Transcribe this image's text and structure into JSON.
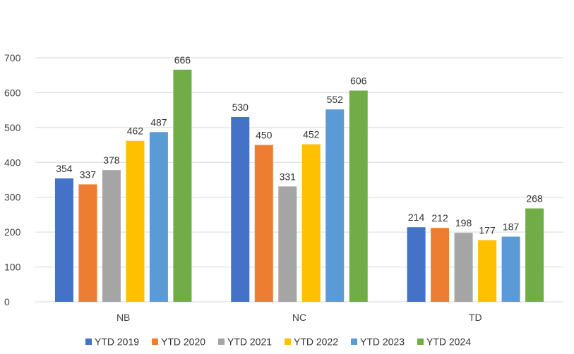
{
  "chart_data": {
    "type": "bar",
    "title": "",
    "xlabel": "",
    "ylabel": "",
    "categories": [
      "NB",
      "NC",
      "TD"
    ],
    "ylim": [
      0,
      700
    ],
    "yticks": [
      0,
      100,
      200,
      300,
      400,
      500,
      600,
      700
    ],
    "grid": true,
    "legend_position": "bottom",
    "series": [
      {
        "name": "YTD 2019",
        "color": "#4472C4",
        "values": [
          354,
          530,
          214
        ]
      },
      {
        "name": "YTD 2020",
        "color": "#ED7D31",
        "values": [
          337,
          450,
          212
        ]
      },
      {
        "name": "YTD 2021",
        "color": "#A5A5A5",
        "values": [
          378,
          331,
          198
        ]
      },
      {
        "name": "YTD 2022",
        "color": "#FFC000",
        "values": [
          462,
          452,
          177
        ]
      },
      {
        "name": "YTD 2023",
        "color": "#5B9BD5",
        "values": [
          487,
          552,
          187
        ]
      },
      {
        "name": "YTD 2024",
        "color": "#70AD47",
        "values": [
          666,
          606,
          268
        ]
      }
    ]
  }
}
